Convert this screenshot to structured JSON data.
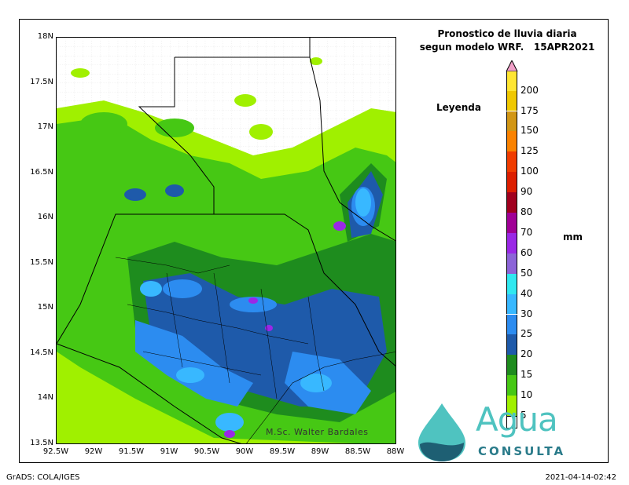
{
  "title_line1": "Pronostico de lluvia diaria",
  "title_line2": "segun modelo WRF.",
  "date": "15APR2021",
  "legend_title": "Leyenda",
  "units": "mm",
  "credit": "M.Sc. Walter Bardales",
  "footer_left": "GrADS: COLA/IGES",
  "footer_right": "2021-04-14-02:42",
  "logo_text": "Agua",
  "logo_sub": "CONSULTA",
  "lat_labels": [
    "18N",
    "17.5N",
    "17N",
    "16.5N",
    "16N",
    "15.5N",
    "15N",
    "14.5N",
    "14N",
    "13.5N"
  ],
  "lon_labels": [
    "92.5W",
    "92W",
    "91.5W",
    "91W",
    "90.5W",
    "90W",
    "89.5W",
    "89W",
    "88.5W",
    "88W"
  ],
  "colorbar": [
    {
      "value": "5",
      "color": "#a0f000"
    },
    {
      "value": "10",
      "color": "#46c814"
    },
    {
      "value": "15",
      "color": "#1e8c1e"
    },
    {
      "value": "20",
      "color": "#1e5aaa"
    },
    {
      "value": "25",
      "color": "#2c8cf0"
    },
    {
      "value": "30",
      "color": "#38b8ff"
    },
    {
      "value": "40",
      "color": "#30e8f0"
    },
    {
      "value": "50",
      "color": "#8c64d8"
    },
    {
      "value": "60",
      "color": "#9a28e6"
    },
    {
      "value": "70",
      "color": "#a00096"
    },
    {
      "value": "80",
      "color": "#a0001e"
    },
    {
      "value": "90",
      "color": "#dc1e00"
    },
    {
      "value": "100",
      "color": "#f03c00"
    },
    {
      "value": "125",
      "color": "#fa8200"
    },
    {
      "value": "150",
      "color": "#d29614"
    },
    {
      "value": "175",
      "color": "#f0c800"
    },
    {
      "value": "200",
      "color": "#ffe632"
    }
  ],
  "colorbar_top_color": "#f0a0c8",
  "colorbar_bottom_color": "#ffffff"
}
